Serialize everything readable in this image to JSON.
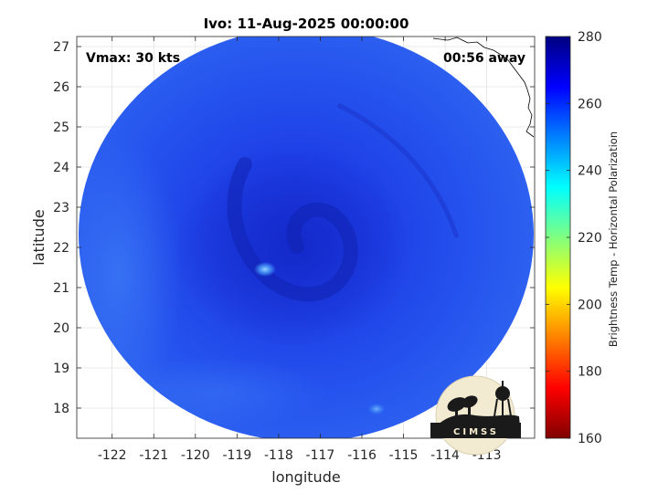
{
  "chart_data": {
    "type": "heatmap",
    "title": "Ivo: 11-Aug-2025 00:00:00",
    "xlabel": "longitude",
    "ylabel": "latitude",
    "xlim": [
      -122.85,
      -111.85
    ],
    "ylim": [
      17.25,
      27.25
    ],
    "xticks": [
      -122,
      -121,
      -120,
      -119,
      -118,
      -117,
      -116,
      -115,
      -114,
      -113
    ],
    "yticks": [
      18,
      19,
      20,
      21,
      22,
      23,
      24,
      25,
      26,
      27
    ],
    "grid": true,
    "center": {
      "lon": -117.3,
      "lat": 22.2
    },
    "colorbar": {
      "label": "Brightness Temp - Horizontal Polarization",
      "min": 160,
      "max": 280,
      "ticks": [
        160,
        180,
        200,
        220,
        240,
        260,
        280
      ],
      "colormap": "jet",
      "colors": [
        "#800000",
        "#ff0000",
        "#ff8000",
        "#ffff00",
        "#80ff80",
        "#00ffff",
        "#0080ff",
        "#0000ff",
        "#000080"
      ]
    },
    "annotations": {
      "vmax": "Vmax: 30 kts",
      "time_away": "00:56 away"
    }
  },
  "logo": {
    "text": "CIMSS"
  }
}
